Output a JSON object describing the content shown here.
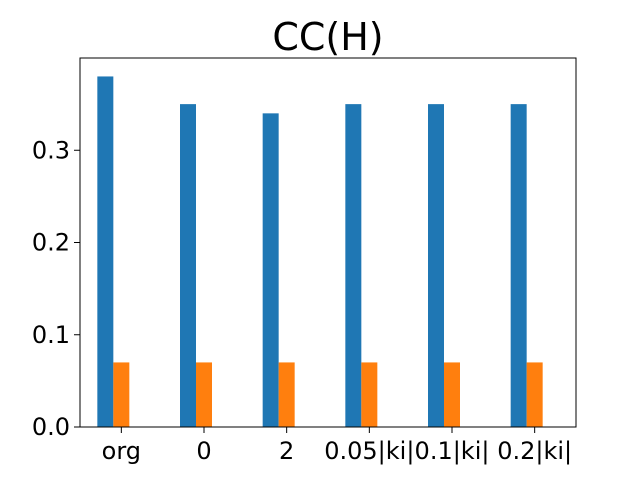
{
  "chart_data": {
    "type": "bar",
    "title": "CC(H)",
    "xlabel": "",
    "ylabel": "",
    "categories": [
      "org",
      "0",
      "2",
      "0.05|ki|",
      "0.1|ki|",
      "0.2|ki|"
    ],
    "series": [
      {
        "values": [
          0.38,
          0.35,
          0.34,
          0.35,
          0.35,
          0.35
        ],
        "color": "#1f77b4"
      },
      {
        "values": [
          0.07,
          0.07,
          0.07,
          0.07,
          0.07,
          0.07
        ],
        "color": "#ff7f0e"
      }
    ],
    "ylim": [
      0.0,
      0.4
    ],
    "yticks": [
      "0.0",
      "0.1",
      "0.2",
      "0.3"
    ],
    "grid": false,
    "legend": "none"
  }
}
